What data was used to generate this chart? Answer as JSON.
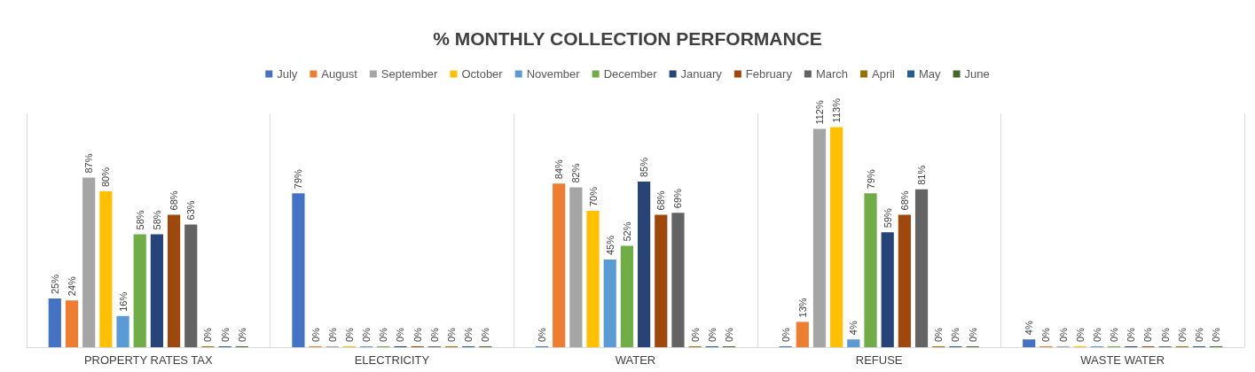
{
  "chart_data": {
    "type": "bar",
    "title": "% MONTHLY COLLECTION PERFORMANCE",
    "categories": [
      "PROPERTY RATES TAX",
      "ELECTRICITY",
      "WATER",
      "REFUSE",
      "WASTE WATER"
    ],
    "series": [
      {
        "name": "July",
        "color": "#4472c4",
        "values": [
          25,
          79,
          0,
          0,
          4
        ],
        "value_labels": [
          "25%",
          "79%",
          "0%",
          "0%",
          "4%"
        ]
      },
      {
        "name": "August",
        "color": "#ed7d31",
        "values": [
          24,
          0,
          84,
          13,
          0
        ],
        "value_labels": [
          "24%",
          "0%",
          "84%",
          "13%",
          "0%"
        ]
      },
      {
        "name": "September",
        "color": "#a5a5a5",
        "values": [
          87,
          0,
          82,
          112,
          0
        ],
        "value_labels": [
          "87%",
          "0%",
          "82%",
          "112%",
          "0%"
        ]
      },
      {
        "name": "October",
        "color": "#ffc000",
        "values": [
          80,
          0,
          70,
          113,
          0
        ],
        "value_labels": [
          "80%",
          "0%",
          "70%",
          "113%",
          "0%"
        ]
      },
      {
        "name": "November",
        "color": "#5b9bd5",
        "values": [
          16,
          0,
          45,
          4,
          0
        ],
        "value_labels": [
          "16%",
          "0%",
          "45%",
          "4%",
          "0%"
        ]
      },
      {
        "name": "December",
        "color": "#70ad47",
        "values": [
          58,
          0,
          52,
          79,
          0
        ],
        "value_labels": [
          "58%",
          "0%",
          "52%",
          "79%",
          "0%"
        ]
      },
      {
        "name": "January",
        "color": "#264478",
        "values": [
          58,
          0,
          85,
          59,
          0
        ],
        "value_labels": [
          "58%",
          "0%",
          "85%",
          "59%",
          "0%"
        ]
      },
      {
        "name": "February",
        "color": "#9e480e",
        "values": [
          68,
          0,
          68,
          68,
          0
        ],
        "value_labels": [
          "68%",
          "0%",
          "68%",
          "68%",
          "0%"
        ]
      },
      {
        "name": "March",
        "color": "#636363",
        "values": [
          63,
          0,
          69,
          81,
          0
        ],
        "value_labels": [
          "63%",
          "0%",
          "69%",
          "81%",
          "0%"
        ]
      },
      {
        "name": "April",
        "color": "#997300",
        "values": [
          0,
          0,
          0,
          0,
          0
        ],
        "value_labels": [
          "0%",
          "0%",
          "0%",
          "0%",
          "0%"
        ]
      },
      {
        "name": "May",
        "color": "#255e91",
        "values": [
          0,
          0,
          0,
          0,
          0
        ],
        "value_labels": [
          "0%",
          "0%",
          "0%",
          "0%",
          "0%"
        ]
      },
      {
        "name": "June",
        "color": "#43682b",
        "values": [
          0,
          0,
          0,
          0,
          0
        ],
        "value_labels": [
          "0%",
          "0%",
          "0%",
          "0%",
          "0%"
        ]
      }
    ],
    "grid": "x",
    "legend": "top"
  }
}
